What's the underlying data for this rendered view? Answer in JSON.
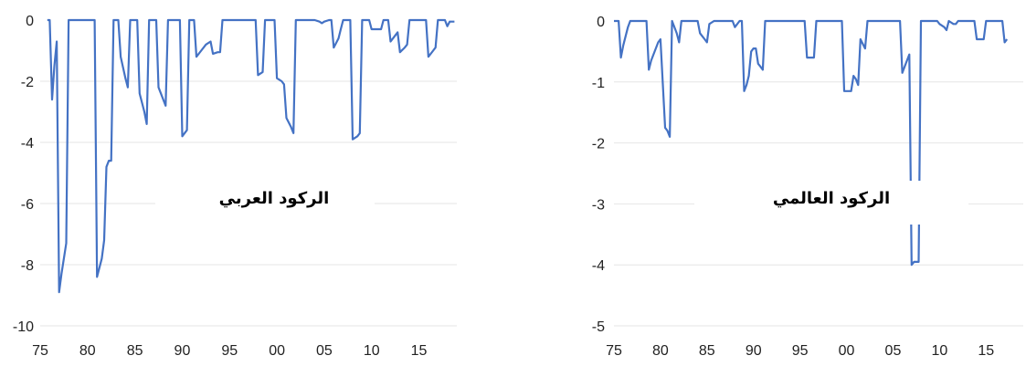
{
  "chart_data": [
    {
      "type": "line",
      "title": "الركود العربي",
      "xlabel": "",
      "ylabel": "",
      "ylim": [
        -10,
        0
      ],
      "yticks": [
        0,
        -2,
        -4,
        -6,
        -8,
        -10
      ],
      "xlim": [
        1975,
        2019
      ],
      "xticks": [
        {
          "value": 1975,
          "label": "75"
        },
        {
          "value": 1980,
          "label": "80"
        },
        {
          "value": 1985,
          "label": "85"
        },
        {
          "value": 1990,
          "label": "90"
        },
        {
          "value": 1995,
          "label": "95"
        },
        {
          "value": 2000,
          "label": "00"
        },
        {
          "value": 2005,
          "label": "05"
        },
        {
          "value": 2010,
          "label": "10"
        },
        {
          "value": 2015,
          "label": "15"
        }
      ],
      "grid": true,
      "series": [
        {
          "color": "#4472c4",
          "points": [
            [
              1975.75,
              0
            ],
            [
              1976,
              0
            ],
            [
              1976.25,
              -2.6
            ],
            [
              1976.5,
              -1.5
            ],
            [
              1976.75,
              -0.7
            ],
            [
              1977,
              -8.9
            ],
            [
              1977.25,
              -8.3
            ],
            [
              1977.75,
              -7.3
            ],
            [
              1978,
              0
            ],
            [
              1978.5,
              0
            ],
            [
              1979,
              0
            ],
            [
              1980,
              0
            ],
            [
              1980.5,
              0
            ],
            [
              1980.75,
              0
            ],
            [
              1981,
              -8.4
            ],
            [
              1981.5,
              -7.8
            ],
            [
              1981.75,
              -7.2
            ],
            [
              1982,
              -4.8
            ],
            [
              1982.25,
              -4.6
            ],
            [
              1982.5,
              -4.6
            ],
            [
              1982.75,
              0
            ],
            [
              1983,
              0
            ],
            [
              1983.25,
              0
            ],
            [
              1983.5,
              -1.2
            ],
            [
              1984,
              -1.9
            ],
            [
              1984.25,
              -2.2
            ],
            [
              1984.5,
              0
            ],
            [
              1985,
              0
            ],
            [
              1985.25,
              0
            ],
            [
              1985.5,
              -2.4
            ],
            [
              1986,
              -3.0
            ],
            [
              1986.25,
              -3.4
            ],
            [
              1986.5,
              0
            ],
            [
              1987,
              0
            ],
            [
              1987.25,
              0
            ],
            [
              1987.5,
              -2.2
            ],
            [
              1988,
              -2.6
            ],
            [
              1988.25,
              -2.8
            ],
            [
              1988.5,
              0
            ],
            [
              1989,
              0
            ],
            [
              1989.5,
              0
            ],
            [
              1989.75,
              0
            ],
            [
              1990,
              -3.8
            ],
            [
              1990.5,
              -3.6
            ],
            [
              1990.75,
              0
            ],
            [
              1991,
              0
            ],
            [
              1991.25,
              0
            ],
            [
              1991.5,
              -1.2
            ],
            [
              1992,
              -1.0
            ],
            [
              1992.5,
              -0.8
            ],
            [
              1993,
              -0.7
            ],
            [
              1993.25,
              -1.1
            ],
            [
              1993.75,
              -1.05
            ],
            [
              1994,
              -1.05
            ],
            [
              1994.25,
              0
            ],
            [
              1995,
              0
            ],
            [
              1996,
              0
            ],
            [
              1997,
              0
            ],
            [
              1997.75,
              0
            ],
            [
              1998,
              -1.8
            ],
            [
              1998.5,
              -1.7
            ],
            [
              1998.75,
              0
            ],
            [
              1999,
              0
            ],
            [
              1999.75,
              0
            ],
            [
              2000,
              -1.9
            ],
            [
              2000.5,
              -2.0
            ],
            [
              2000.75,
              -2.1
            ],
            [
              2001,
              -3.2
            ],
            [
              2001.5,
              -3.5
            ],
            [
              2001.75,
              -3.7
            ],
            [
              2002,
              0
            ],
            [
              2003,
              0
            ],
            [
              2004,
              0
            ],
            [
              2004.5,
              -0.05
            ],
            [
              2004.75,
              -0.1
            ],
            [
              2005,
              -0.05
            ],
            [
              2005.5,
              0
            ],
            [
              2005.75,
              0
            ],
            [
              2006,
              -0.9
            ],
            [
              2006.5,
              -0.6
            ],
            [
              2006.75,
              -0.3
            ],
            [
              2007,
              0
            ],
            [
              2007.5,
              0
            ],
            [
              2007.75,
              0
            ],
            [
              2008,
              -3.9
            ],
            [
              2008.5,
              -3.8
            ],
            [
              2008.75,
              -3.7
            ],
            [
              2009,
              0
            ],
            [
              2009.5,
              0
            ],
            [
              2009.75,
              0
            ],
            [
              2010,
              -0.3
            ],
            [
              2011,
              -0.3
            ],
            [
              2011.25,
              0
            ],
            [
              2011.75,
              0
            ],
            [
              2012,
              -0.7
            ],
            [
              2012.5,
              -0.5
            ],
            [
              2012.75,
              -0.4
            ],
            [
              2013,
              -1.05
            ],
            [
              2013.5,
              -0.9
            ],
            [
              2013.75,
              -0.8
            ],
            [
              2014,
              0
            ],
            [
              2015,
              0
            ],
            [
              2015.75,
              0
            ],
            [
              2016,
              -1.2
            ],
            [
              2016.5,
              -1.0
            ],
            [
              2016.75,
              -0.9
            ],
            [
              2017,
              0
            ],
            [
              2017.5,
              0
            ],
            [
              2017.75,
              0
            ],
            [
              2018,
              -0.2
            ],
            [
              2018.25,
              -0.05
            ],
            [
              2018.75,
              -0.05
            ]
          ]
        }
      ]
    },
    {
      "type": "line",
      "title": "الركود العالمي",
      "xlabel": "",
      "ylabel": "",
      "ylim": [
        -5,
        0
      ],
      "yticks": [
        0,
        -1,
        -2,
        -3,
        -4,
        -5
      ],
      "xlim": [
        1975,
        2019
      ],
      "xticks": [
        {
          "value": 1975,
          "label": "75"
        },
        {
          "value": 1980,
          "label": "80"
        },
        {
          "value": 1985,
          "label": "85"
        },
        {
          "value": 1990,
          "label": "90"
        },
        {
          "value": 1995,
          "label": "95"
        },
        {
          "value": 2000,
          "label": "00"
        },
        {
          "value": 2005,
          "label": "05"
        },
        {
          "value": 2010,
          "label": "10"
        },
        {
          "value": 2015,
          "label": "15"
        }
      ],
      "grid": true,
      "series": [
        {
          "color": "#4472c4",
          "points": [
            [
              1975,
              0
            ],
            [
              1975.5,
              0
            ],
            [
              1975.75,
              -0.6
            ],
            [
              1976,
              -0.4
            ],
            [
              1976.5,
              -0.1
            ],
            [
              1976.75,
              0
            ],
            [
              1977,
              0
            ],
            [
              1978,
              0
            ],
            [
              1978.5,
              0
            ],
            [
              1978.75,
              -0.8
            ],
            [
              1979,
              -0.65
            ],
            [
              1979.5,
              -0.45
            ],
            [
              1979.75,
              -0.35
            ],
            [
              1980,
              -0.3
            ],
            [
              1980.5,
              -1.75
            ],
            [
              1980.75,
              -1.8
            ],
            [
              1981,
              -1.9
            ],
            [
              1981.25,
              0
            ],
            [
              1981.75,
              -0.2
            ],
            [
              1982,
              -0.35
            ],
            [
              1982.25,
              0
            ],
            [
              1983,
              0
            ],
            [
              1983.5,
              0
            ],
            [
              1984,
              0
            ],
            [
              1984.25,
              -0.2
            ],
            [
              1984.5,
              -0.25
            ],
            [
              1984.75,
              -0.3
            ],
            [
              1985,
              -0.35
            ],
            [
              1985.25,
              -0.05
            ],
            [
              1985.75,
              0
            ],
            [
              1986,
              0
            ],
            [
              1987,
              0
            ],
            [
              1987.75,
              0
            ],
            [
              1988,
              -0.1
            ],
            [
              1988.5,
              0
            ],
            [
              1988.75,
              0
            ],
            [
              1989,
              -1.15
            ],
            [
              1989.25,
              -1.05
            ],
            [
              1989.5,
              -0.9
            ],
            [
              1989.75,
              -0.5
            ],
            [
              1990,
              -0.45
            ],
            [
              1990.25,
              -0.45
            ],
            [
              1990.5,
              -0.7
            ],
            [
              1990.75,
              -0.75
            ],
            [
              1991,
              -0.8
            ],
            [
              1991.25,
              0
            ],
            [
              1992,
              0
            ],
            [
              1993,
              0
            ],
            [
              1994,
              0
            ],
            [
              1995,
              0
            ],
            [
              1995.5,
              0
            ],
            [
              1995.75,
              -0.6
            ],
            [
              1996,
              -0.6
            ],
            [
              1996.5,
              -0.6
            ],
            [
              1996.75,
              0
            ],
            [
              1997,
              0
            ],
            [
              1998,
              0
            ],
            [
              1999,
              0
            ],
            [
              1999.5,
              0
            ],
            [
              1999.75,
              -1.15
            ],
            [
              2000,
              -1.15
            ],
            [
              2000.5,
              -1.15
            ],
            [
              2000.75,
              -0.9
            ],
            [
              2001,
              -0.95
            ],
            [
              2001.25,
              -1.05
            ],
            [
              2001.5,
              -0.3
            ],
            [
              2002,
              -0.45
            ],
            [
              2002.25,
              0
            ],
            [
              2003,
              0
            ],
            [
              2004,
              0
            ],
            [
              2005,
              0
            ],
            [
              2005.75,
              0
            ],
            [
              2006,
              -0.85
            ],
            [
              2006.5,
              -0.65
            ],
            [
              2006.75,
              -0.55
            ],
            [
              2007,
              -4.0
            ],
            [
              2007.25,
              -3.95
            ],
            [
              2007.75,
              -3.95
            ],
            [
              2008,
              0
            ],
            [
              2008.5,
              0
            ],
            [
              2009,
              0
            ],
            [
              2009.75,
              0
            ],
            [
              2010,
              -0.05
            ],
            [
              2010.5,
              -0.1
            ],
            [
              2010.75,
              -0.15
            ],
            [
              2011,
              0
            ],
            [
              2011.5,
              -0.05
            ],
            [
              2011.75,
              -0.05
            ],
            [
              2012,
              0
            ],
            [
              2013,
              0
            ],
            [
              2013.25,
              0
            ],
            [
              2013.75,
              0
            ],
            [
              2014,
              -0.3
            ],
            [
              2014.75,
              -0.3
            ],
            [
              2015,
              0
            ],
            [
              2015.5,
              0
            ],
            [
              2016,
              0
            ],
            [
              2016.75,
              0
            ],
            [
              2017,
              -0.35
            ],
            [
              2017.25,
              -0.3
            ]
          ]
        }
      ]
    }
  ]
}
